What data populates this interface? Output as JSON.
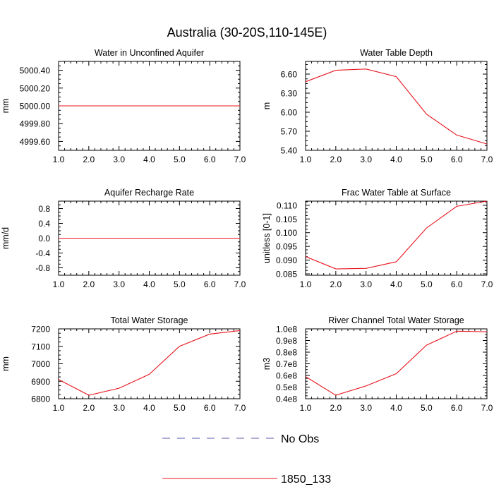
{
  "figure_title": "Australia (30-20S,110-145E)",
  "colors": {
    "model": "#e8141e",
    "obs": "#5a5aa8",
    "axis": "#000000"
  },
  "legend": [
    {
      "label": "No Obs",
      "style": "dashed",
      "color": "#5a5aa8"
    },
    {
      "label": "1850_133",
      "style": "solid",
      "color": "#e8141e"
    }
  ],
  "chart_data": [
    {
      "type": "line",
      "title": "Water in Unconfined Aquifer",
      "xlabel": "",
      "ylabel": "mm",
      "xlim": [
        1,
        7
      ],
      "ylim": [
        4999.5,
        5000.5
      ],
      "xticks": [
        1,
        2,
        3,
        4,
        5,
        6,
        7
      ],
      "xtick_labels": [
        "1.0",
        "2.0",
        "3.0",
        "4.0",
        "5.0",
        "6.0",
        "7.0"
      ],
      "yticks": [
        4999.6,
        4999.8,
        5000.0,
        5000.2,
        5000.4
      ],
      "ytick_labels": [
        "4999.60",
        "4999.80",
        "5000.00",
        "5000.20",
        "5000.40"
      ],
      "series": [
        {
          "name": "1850_133",
          "x": [
            1,
            2,
            3,
            4,
            5,
            6,
            7
          ],
          "values": [
            5000,
            5000,
            5000,
            5000,
            5000,
            5000,
            5000
          ]
        }
      ]
    },
    {
      "type": "line",
      "title": "Water Table Depth",
      "xlabel": "",
      "ylabel": "m",
      "xlim": [
        1,
        7
      ],
      "ylim": [
        5.4,
        6.8
      ],
      "xticks": [
        1,
        2,
        3,
        4,
        5,
        6,
        7
      ],
      "xtick_labels": [
        "1.0",
        "2.0",
        "3.0",
        "4.0",
        "5.0",
        "6.0",
        "7.0"
      ],
      "yticks": [
        5.4,
        5.7,
        6.0,
        6.3,
        6.6
      ],
      "ytick_labels": [
        "5.40",
        "5.70",
        "6.00",
        "6.30",
        "6.60"
      ],
      "series": [
        {
          "name": "1850_133",
          "x": [
            1,
            2,
            3,
            4,
            5,
            6,
            7
          ],
          "values": [
            6.48,
            6.66,
            6.68,
            6.56,
            5.97,
            5.64,
            5.5
          ]
        }
      ]
    },
    {
      "type": "line",
      "title": "Aquifer Recharge Rate",
      "xlabel": "",
      "ylabel": "mm/d",
      "xlim": [
        1,
        7
      ],
      "ylim": [
        -1.0,
        1.0
      ],
      "xticks": [
        1,
        2,
        3,
        4,
        5,
        6,
        7
      ],
      "xtick_labels": [
        "1.0",
        "2.0",
        "3.0",
        "4.0",
        "5.0",
        "6.0",
        "7.0"
      ],
      "yticks": [
        -0.8,
        -0.4,
        0.0,
        0.4,
        0.8
      ],
      "ytick_labels": [
        "-0.8",
        "-0.4",
        "0.0",
        "0.4",
        "0.8"
      ],
      "series": [
        {
          "name": "1850_133",
          "x": [
            1,
            2,
            3,
            4,
            5,
            6,
            7
          ],
          "values": [
            0,
            0,
            0,
            0,
            0,
            0,
            0
          ]
        }
      ]
    },
    {
      "type": "line",
      "title": "Frac Water Table at Surface",
      "xlabel": "",
      "ylabel": "unitless [0-1]",
      "xlim": [
        1,
        7
      ],
      "ylim": [
        0.0845,
        0.1115
      ],
      "xticks": [
        1,
        2,
        3,
        4,
        5,
        6,
        7
      ],
      "xtick_labels": [
        "1.0",
        "2.0",
        "3.0",
        "4.0",
        "5.0",
        "6.0",
        "7.0"
      ],
      "yticks": [
        0.085,
        0.09,
        0.095,
        0.1,
        0.105,
        0.11
      ],
      "ytick_labels": [
        "0.085",
        "0.090",
        "0.095",
        "0.100",
        "0.105",
        "0.110"
      ],
      "series": [
        {
          "name": "1850_133",
          "x": [
            1,
            2,
            3,
            4,
            5,
            6,
            7
          ],
          "values": [
            0.0913,
            0.0868,
            0.087,
            0.0894,
            0.1017,
            0.1096,
            0.1115
          ]
        }
      ]
    },
    {
      "type": "line",
      "title": "Total Water Storage",
      "xlabel": "",
      "ylabel": "mm",
      "xlim": [
        1,
        7
      ],
      "ylim": [
        6800,
        7200
      ],
      "xticks": [
        1,
        2,
        3,
        4,
        5,
        6,
        7
      ],
      "xtick_labels": [
        "1.0",
        "2.0",
        "3.0",
        "4.0",
        "5.0",
        "6.0",
        "7.0"
      ],
      "yticks": [
        6800,
        6900,
        7000,
        7100,
        7200
      ],
      "ytick_labels": [
        "6800",
        "6900",
        "7000",
        "7100",
        "7200"
      ],
      "series": [
        {
          "name": "1850_133",
          "x": [
            1,
            2,
            3,
            4,
            5,
            6,
            7
          ],
          "values": [
            6910,
            6820,
            6860,
            6940,
            7100,
            7170,
            7190
          ]
        }
      ]
    },
    {
      "type": "line",
      "title": "River Channel Total Water Storage",
      "xlabel": "",
      "ylabel": "m3",
      "xlim": [
        1,
        7
      ],
      "ylim": [
        40000000.0,
        100000000.0
      ],
      "xticks": [
        1,
        2,
        3,
        4,
        5,
        6,
        7
      ],
      "xtick_labels": [
        "1.0",
        "2.0",
        "3.0",
        "4.0",
        "5.0",
        "6.0",
        "7.0"
      ],
      "yticks": [
        40000000.0,
        50000000.0,
        60000000.0,
        70000000.0,
        80000000.0,
        90000000.0,
        100000000.0
      ],
      "ytick_labels": [
        "0.4e8",
        "0.5e8",
        "0.6e8",
        "0.7e8",
        "0.8e8",
        "0.9e8",
        "1.0e8"
      ],
      "series": [
        {
          "name": "1850_133",
          "x": [
            1,
            2,
            3,
            4,
            5,
            6,
            7
          ],
          "values": [
            59000000.0,
            43000000.0,
            51000000.0,
            61500000.0,
            86000000.0,
            98000000.0,
            97500000.0
          ]
        }
      ]
    }
  ]
}
